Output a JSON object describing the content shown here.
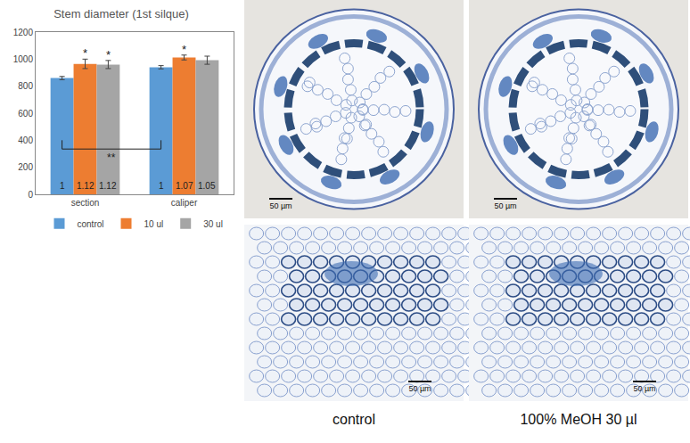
{
  "chart_data": {
    "type": "bar",
    "title": "Stem diameter (1st silque)",
    "categories": [
      "section",
      "caliper"
    ],
    "series": [
      {
        "name": "control",
        "color": "#5B9BD5",
        "values": [
          860,
          940
        ],
        "errors": [
          12,
          12
        ],
        "ratios": [
          1,
          1
        ]
      },
      {
        "name": "10 ul",
        "color": "#ED7D31",
        "values": [
          965,
          1012
        ],
        "errors": [
          35,
          18
        ],
        "ratios": [
          1.12,
          1.07
        ]
      },
      {
        "name": "30 ul",
        "color": "#A5A5A5",
        "values": [
          960,
          992
        ],
        "errors": [
          30,
          30
        ],
        "ratios": [
          1.12,
          1.05
        ]
      }
    ],
    "ylim": [
      0,
      1200
    ],
    "yticks": [
      0,
      200,
      400,
      600,
      800,
      1000,
      1200
    ],
    "grid": false,
    "legend": "bottom",
    "annotations": [
      {
        "text": "*",
        "category": "section",
        "series": "10 ul"
      },
      {
        "text": "*",
        "category": "section",
        "series": "30 ul"
      },
      {
        "text": "*",
        "category": "caliper",
        "series": "10 ul"
      }
    ],
    "bracket": {
      "text": "**",
      "from": {
        "category": "section",
        "series": "control"
      },
      "to": {
        "category": "caliper",
        "series": "control"
      },
      "y": 335,
      "y_top": 400
    }
  },
  "micrographs": {
    "captions": [
      "control",
      "100% MeOH 30 µl"
    ],
    "scale_bar_labels": [
      [
        "50 µm",
        "50 µm"
      ],
      [
        "50 µm",
        "50 µm"
      ]
    ]
  }
}
